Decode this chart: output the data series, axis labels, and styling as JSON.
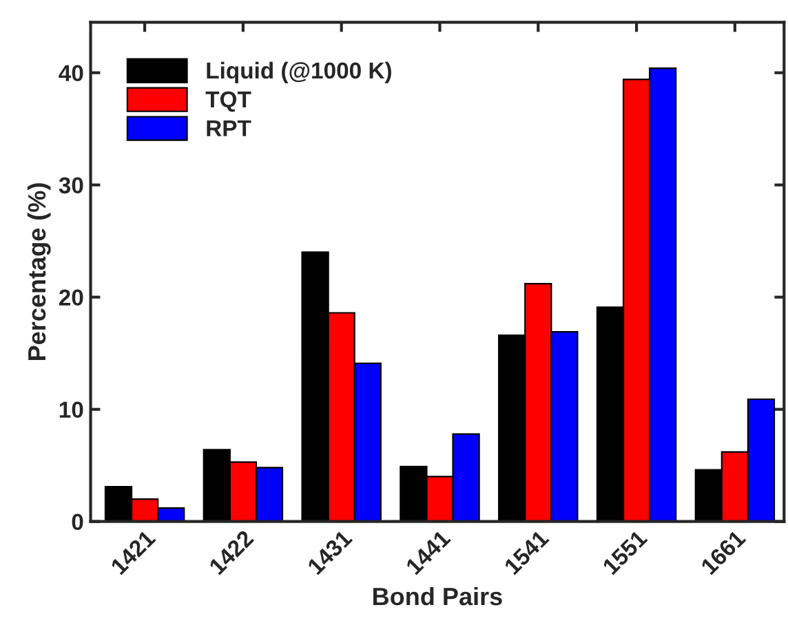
{
  "chart_data": {
    "type": "bar",
    "xlabel": "Bond Pairs",
    "ylabel": "Percentage (%)",
    "categories": [
      "1421",
      "1422",
      "1431",
      "1441",
      "1541",
      "1551",
      "1661"
    ],
    "series": [
      {
        "name": "Liquid (@1000 K)",
        "color": "#000000",
        "values": [
          3.1,
          6.4,
          24.0,
          4.9,
          16.6,
          19.1,
          4.6
        ]
      },
      {
        "name": "TQT",
        "color": "#ff0000",
        "values": [
          2.0,
          5.3,
          18.6,
          4.0,
          21.2,
          39.4,
          6.2
        ]
      },
      {
        "name": "RPT",
        "color": "#0000ff",
        "values": [
          1.2,
          4.8,
          14.1,
          7.8,
          16.9,
          40.4,
          10.9
        ]
      }
    ],
    "ylim": [
      0,
      44.5
    ],
    "yticks": [
      0,
      10,
      20,
      30,
      40
    ],
    "legend": "top left",
    "grid": false
  }
}
